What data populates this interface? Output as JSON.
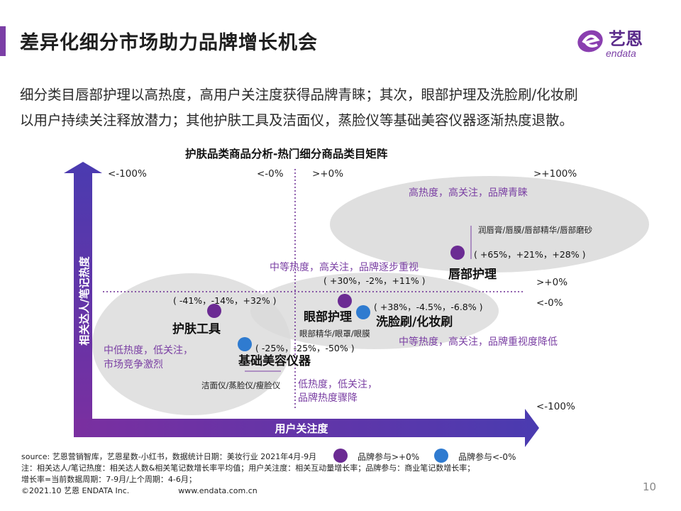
{
  "header": {
    "title": "差异化细分市场助力品牌增长机会",
    "logo_text": "艺恩",
    "logo_subtext": "endata",
    "accent_color": "#7b3fa6"
  },
  "intro": {
    "line1": "细分类目唇部护理以高热度，高用户关注度获得品牌青睐；其次，眼部护理及洗脸刷/化妆刷",
    "line2": "以用户持续关注释放潜力；其他护肤工具及洁面仪，蒸脸仪等基础美容仪器逐渐热度退散。"
  },
  "chart_data": {
    "type": "scatter",
    "title": "护肤品类商品分析-热门细分商品类目矩阵",
    "xlabel": "用户关注度",
    "ylabel": "相关达人/笔记热度",
    "axis_labels": {
      "top_left": "<-100%",
      "top_center_left": "<-0%",
      "top_center_right": ">+0%",
      "top_right": ">+100%",
      "mid_right_upper": ">+0%",
      "mid_right_lower": "<-0%",
      "bottom_right": "<-100%"
    },
    "series": [
      {
        "name": "品牌参与>+0%",
        "color": "#6b2b93"
      },
      {
        "name": "品牌参与<-0%",
        "color": "#2f7bd0"
      }
    ],
    "points": [
      {
        "label": "唇部护理",
        "sub": "润唇膏/唇膜/唇部精华/唇部磨砂",
        "values": "( +65%，+21%，+28% )",
        "series": 0
      },
      {
        "label": "眼部护理",
        "sub": "眼部精华/眼罩/眼膜",
        "values": "( +30%，-2%，+11% )",
        "series": 0
      },
      {
        "label": "洗脸刷/化妆刷",
        "sub": "",
        "values": "( +38%，-4.5%，-6.8% )",
        "series": 1
      },
      {
        "label": "护肤工具",
        "sub": "",
        "values": "( -41%，-14%，+32% )",
        "series": 0
      },
      {
        "label": "基础美容仪器",
        "sub": "洁面仪/蒸脸仪/瘦脸仪",
        "values": "( -25%，-25%，-50% )",
        "series": 1
      }
    ],
    "annotations": [
      "高热度，高关注，品牌青睐",
      "中等热度，高关注，品牌逐步重视",
      "中等热度，高关注，品牌重视度降低",
      "中低热度，低关注，",
      "市场竞争激烈",
      "低热度，低关注，",
      "品牌热度骤降"
    ],
    "grid": false,
    "legend_position": "bottom"
  },
  "footer": {
    "source": "source: 艺恩营销智库，艺恩星数-小红书，数据统计日期：美妆行业 2021年4月-9月",
    "note1": "注：相关达人/笔记热度：相关达人数&相关笔记数增长率平均值；用户关注度：相关互动量增长率；品牌参与：商业笔记数增长率；",
    "note2": "增长率=当前数据周期：7-9月/上个周期：4-6月；",
    "copyright": "©2021.10 艺恩 ENDATA Inc.",
    "website": "www.endata.com.cn",
    "page": "10"
  }
}
